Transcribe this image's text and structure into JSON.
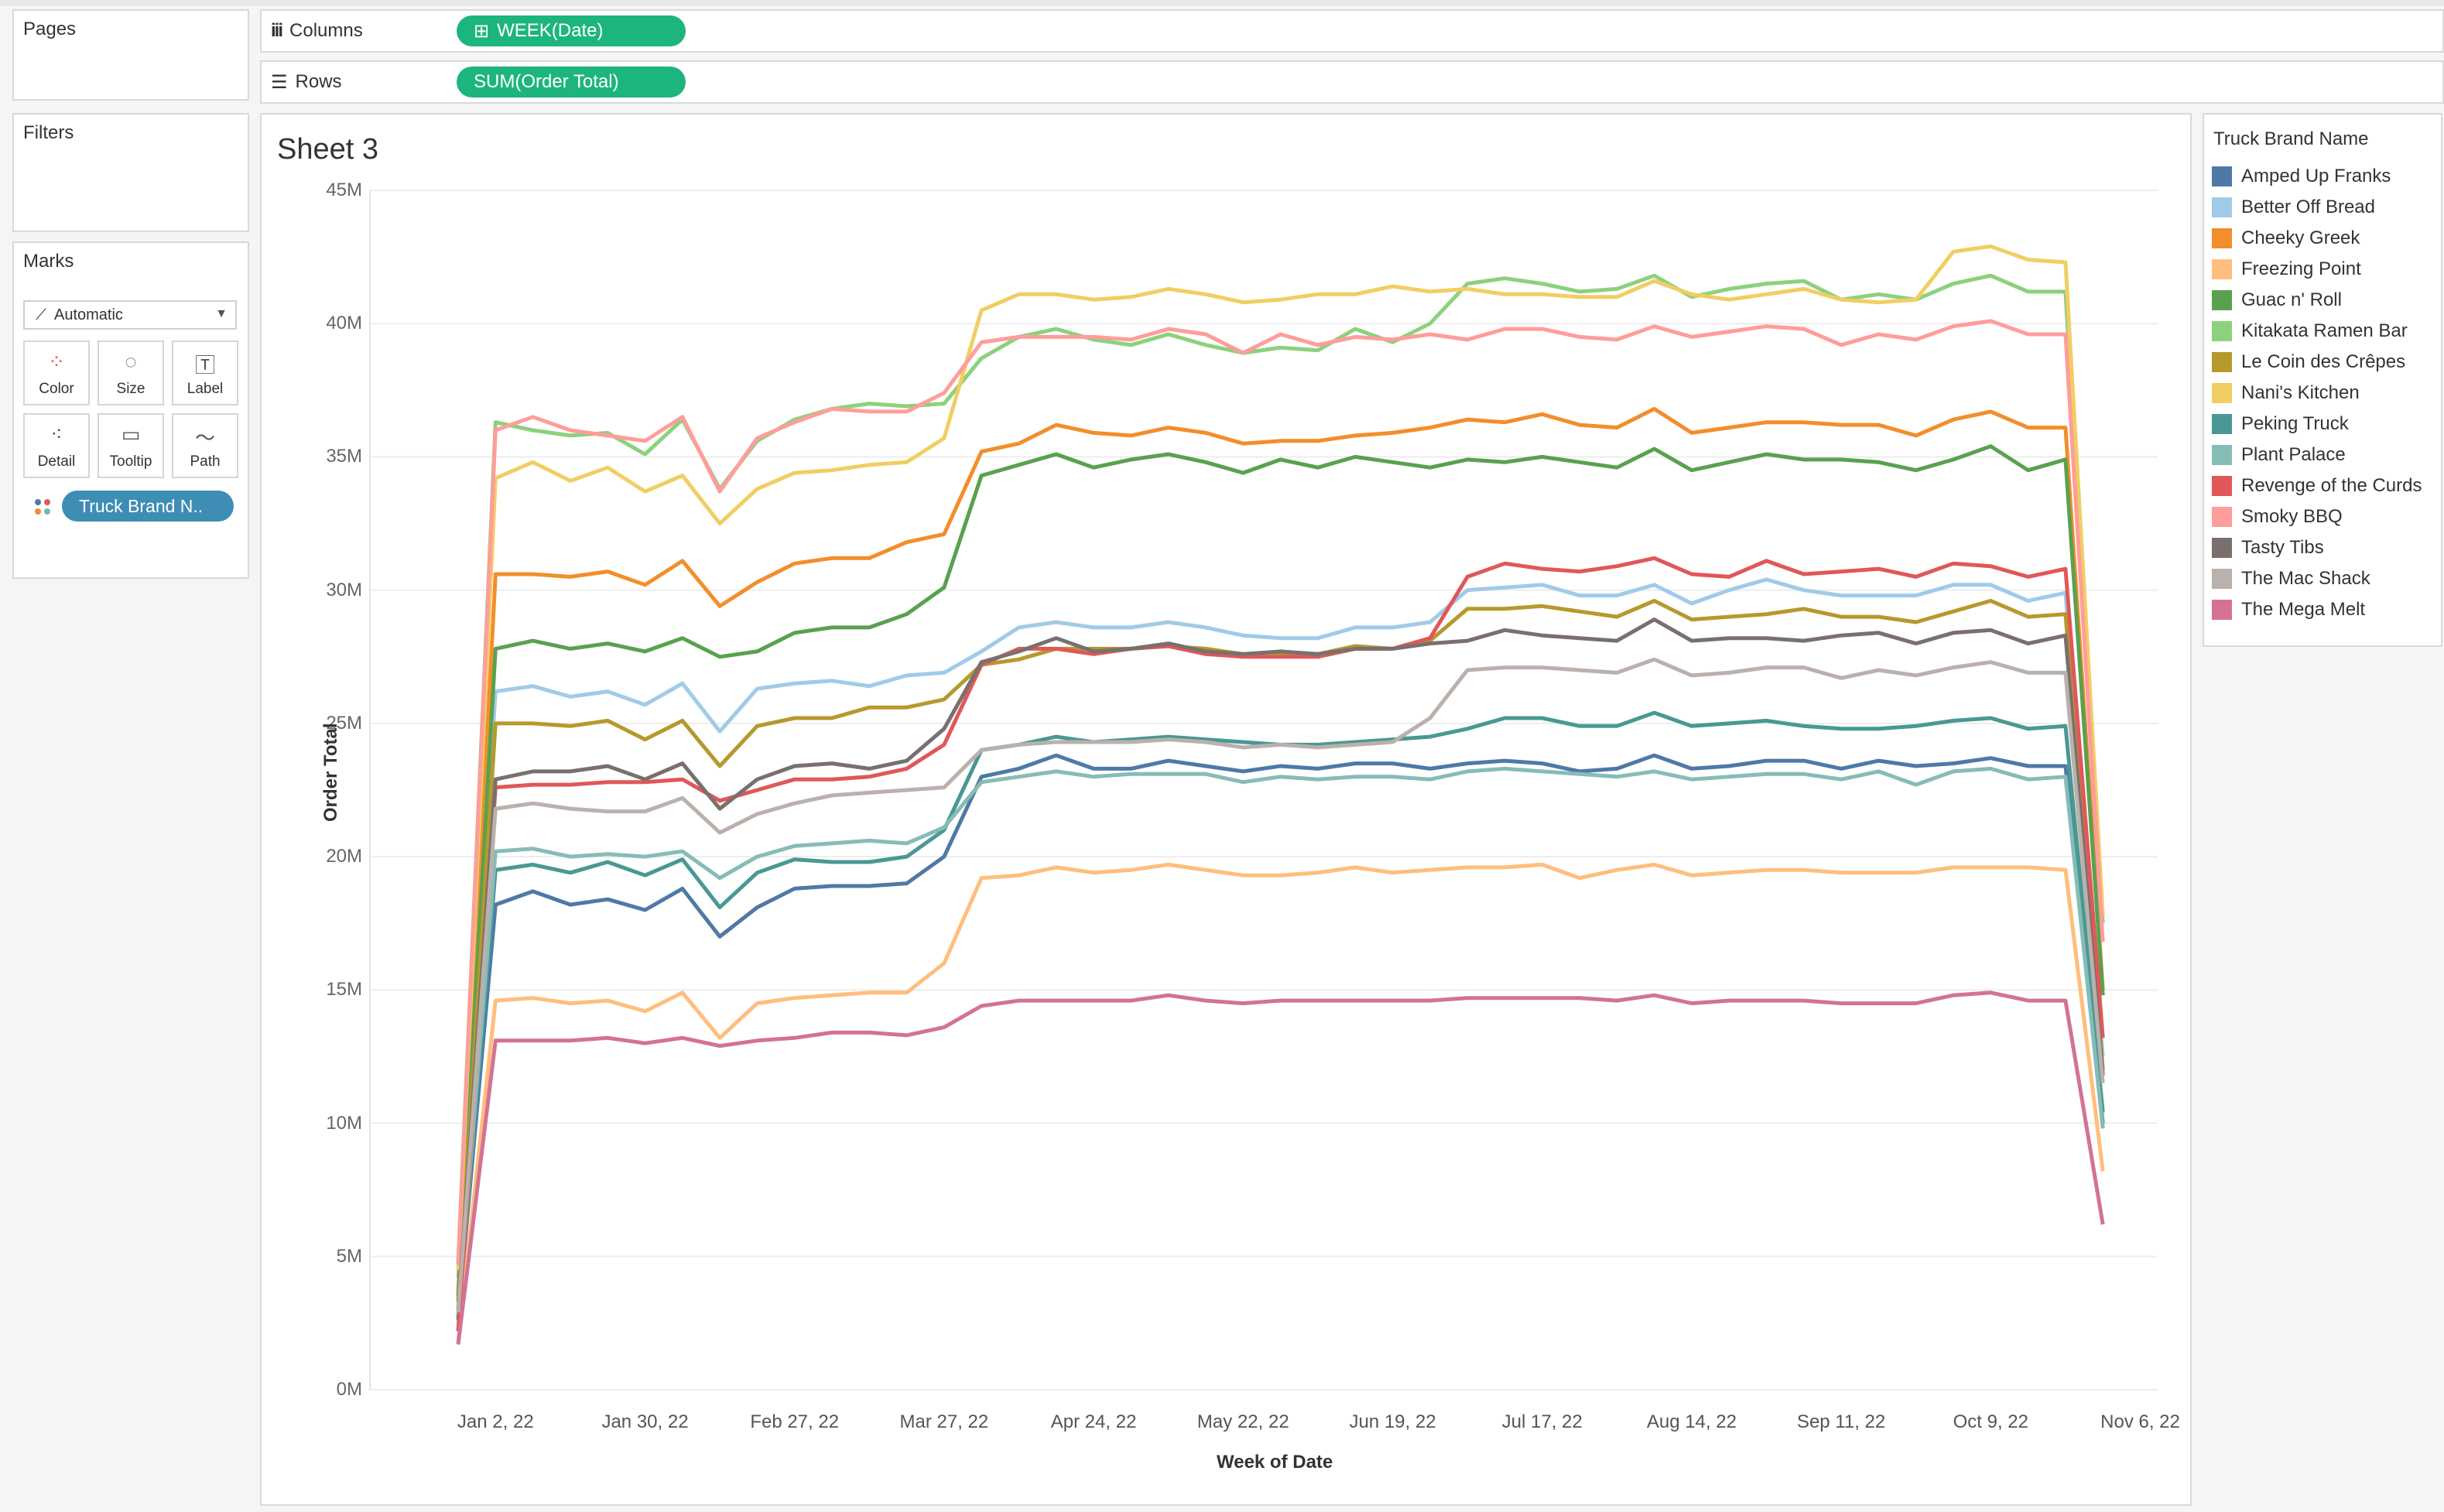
{
  "pages": {
    "label": "Pages"
  },
  "columns": {
    "label": "Columns",
    "pill": "WEEK(Date)"
  },
  "rows": {
    "label": "Rows",
    "pill": "SUM(Order Total)"
  },
  "filters": {
    "label": "Filters"
  },
  "marks": {
    "label": "Marks",
    "type": "Automatic",
    "buttons": [
      "Color",
      "Size",
      "Label",
      "Detail",
      "Tooltip",
      "Path"
    ],
    "pill": "Truck Brand N.."
  },
  "sheet": {
    "title": "Sheet 3"
  },
  "legend": {
    "title": "Truck Brand Name",
    "items": [
      {
        "label": "Amped Up Franks",
        "color": "#4e79a7"
      },
      {
        "label": "Better Off Bread",
        "color": "#a0cbe8"
      },
      {
        "label": "Cheeky Greek",
        "color": "#f28e2b"
      },
      {
        "label": "Freezing Point",
        "color": "#ffbe7d"
      },
      {
        "label": "Guac n' Roll",
        "color": "#59a14f"
      },
      {
        "label": "Kitakata Ramen Bar",
        "color": "#8cd17d"
      },
      {
        "label": "Le Coin des Crêpes",
        "color": "#b6992d"
      },
      {
        "label": "Nani's Kitchen",
        "color": "#f1ce63"
      },
      {
        "label": "Peking Truck",
        "color": "#499894"
      },
      {
        "label": "Plant Palace",
        "color": "#86bcb6"
      },
      {
        "label": "Revenge of the Curds",
        "color": "#e15759"
      },
      {
        "label": "Smoky BBQ",
        "color": "#ff9d9a"
      },
      {
        "label": "Tasty Tibs",
        "color": "#79706e"
      },
      {
        "label": "The Mac Shack",
        "color": "#bab0ac"
      },
      {
        "label": "The Mega Melt",
        "color": "#d37295"
      }
    ]
  },
  "chart_data": {
    "type": "line",
    "xlabel": "Week of Date",
    "ylabel": "Order Total",
    "ylim": [
      0,
      45000000
    ],
    "yticks": [
      "0M",
      "5M",
      "10M",
      "15M",
      "20M",
      "25M",
      "30M",
      "35M",
      "40M",
      "45M"
    ],
    "xticks": [
      "Jan 2, 22",
      "Jan 30, 22",
      "Feb 27, 22",
      "Mar 27, 22",
      "Apr 24, 22",
      "May 22, 22",
      "Jun 19, 22",
      "Jul 17, 22",
      "Aug 14, 22",
      "Sep 11, 22",
      "Oct 9, 22",
      "Nov 6, 22"
    ],
    "x": [
      "Dec 26, 21",
      "Jan 2, 22",
      "Jan 9, 22",
      "Jan 16, 22",
      "Jan 23, 22",
      "Jan 30, 22",
      "Feb 6, 22",
      "Feb 13, 22",
      "Feb 20, 22",
      "Feb 27, 22",
      "Mar 6, 22",
      "Mar 13, 22",
      "Mar 20, 22",
      "Mar 27, 22",
      "Apr 3, 22",
      "Apr 10, 22",
      "Apr 17, 22",
      "Apr 24, 22",
      "May 1, 22",
      "May 8, 22",
      "May 15, 22",
      "May 22, 22",
      "May 29, 22",
      "Jun 5, 22",
      "Jun 12, 22",
      "Jun 19, 22",
      "Jun 26, 22",
      "Jul 3, 22",
      "Jul 10, 22",
      "Jul 17, 22",
      "Jul 24, 22",
      "Jul 31, 22",
      "Aug 7, 22",
      "Aug 14, 22",
      "Aug 21, 22",
      "Aug 28, 22",
      "Sep 4, 22",
      "Sep 11, 22",
      "Sep 18, 22",
      "Sep 25, 22",
      "Oct 2, 22",
      "Oct 9, 22",
      "Oct 16, 22",
      "Oct 23, 22",
      "Oct 30, 22"
    ],
    "series": [
      {
        "name": "Amped Up Franks",
        "values": [
          2.7,
          18.2,
          18.7,
          18.2,
          18.4,
          18.0,
          18.8,
          17.0,
          18.1,
          18.8,
          18.9,
          18.9,
          19.0,
          20.0,
          23.0,
          23.3,
          23.8,
          23.3,
          23.3,
          23.6,
          23.4,
          23.2,
          23.4,
          23.3,
          23.5,
          23.5,
          23.3,
          23.5,
          23.6,
          23.5,
          23.2,
          23.3,
          23.8,
          23.3,
          23.4,
          23.6,
          23.6,
          23.3,
          23.6,
          23.4,
          23.5,
          23.7,
          23.4,
          23.4,
          10.0
        ]
      },
      {
        "name": "Better Off Bread",
        "values": [
          4.2,
          26.2,
          26.4,
          26.0,
          26.2,
          25.7,
          26.5,
          24.7,
          26.3,
          26.5,
          26.6,
          26.4,
          26.8,
          26.9,
          27.7,
          28.6,
          28.8,
          28.6,
          28.6,
          28.8,
          28.6,
          28.3,
          28.2,
          28.2,
          28.6,
          28.6,
          28.8,
          30.0,
          30.1,
          30.2,
          29.8,
          29.8,
          30.2,
          29.5,
          30.0,
          30.4,
          30.0,
          29.8,
          29.8,
          29.8,
          30.2,
          30.2,
          29.6,
          29.9,
          12.5
        ]
      },
      {
        "name": "Cheeky Greek",
        "values": [
          3.6,
          30.6,
          30.6,
          30.5,
          30.7,
          30.2,
          31.1,
          29.4,
          30.3,
          31.0,
          31.2,
          31.2,
          31.8,
          32.1,
          35.2,
          35.5,
          36.2,
          35.9,
          35.8,
          36.1,
          35.9,
          35.5,
          35.6,
          35.6,
          35.8,
          35.9,
          36.1,
          36.4,
          36.3,
          36.6,
          36.2,
          36.1,
          36.8,
          35.9,
          36.1,
          36.3,
          36.3,
          36.2,
          36.2,
          35.8,
          36.4,
          36.7,
          36.1,
          36.1,
          15.0
        ]
      },
      {
        "name": "Freezing Point",
        "values": [
          1.8,
          14.6,
          14.7,
          14.5,
          14.6,
          14.2,
          14.9,
          13.2,
          14.5,
          14.7,
          14.8,
          14.9,
          14.9,
          16.0,
          19.2,
          19.3,
          19.6,
          19.4,
          19.5,
          19.7,
          19.5,
          19.3,
          19.3,
          19.4,
          19.6,
          19.4,
          19.5,
          19.6,
          19.6,
          19.7,
          19.2,
          19.5,
          19.7,
          19.3,
          19.4,
          19.5,
          19.5,
          19.4,
          19.4,
          19.4,
          19.6,
          19.6,
          19.6,
          19.5,
          8.2
        ]
      },
      {
        "name": "Guac n' Roll",
        "values": [
          3.5,
          27.8,
          28.1,
          27.8,
          28.0,
          27.7,
          28.2,
          27.5,
          27.7,
          28.4,
          28.6,
          28.6,
          29.1,
          30.1,
          34.3,
          34.7,
          35.1,
          34.6,
          34.9,
          35.1,
          34.8,
          34.4,
          34.9,
          34.6,
          35.0,
          34.8,
          34.6,
          34.9,
          34.8,
          35.0,
          34.8,
          34.6,
          35.3,
          34.5,
          34.8,
          35.1,
          34.9,
          34.9,
          34.8,
          34.5,
          34.9,
          35.4,
          34.5,
          34.9,
          14.8
        ]
      },
      {
        "name": "Kitakata Ramen Bar",
        "values": [
          4.8,
          36.3,
          36.0,
          35.8,
          35.9,
          35.1,
          36.4,
          33.8,
          35.6,
          36.4,
          36.8,
          37.0,
          36.9,
          37.0,
          38.7,
          39.5,
          39.8,
          39.4,
          39.2,
          39.6,
          39.2,
          38.9,
          39.1,
          39.0,
          39.8,
          39.3,
          40.0,
          41.5,
          41.7,
          41.5,
          41.2,
          41.3,
          41.8,
          41.0,
          41.3,
          41.5,
          41.6,
          40.9,
          41.1,
          40.9,
          41.5,
          41.8,
          41.2,
          41.2,
          17.5
        ]
      },
      {
        "name": "Le Coin des Crêpes",
        "values": [
          3.3,
          25.0,
          25.0,
          24.9,
          25.1,
          24.4,
          25.1,
          23.4,
          24.9,
          25.2,
          25.2,
          25.6,
          25.6,
          25.9,
          27.2,
          27.4,
          27.8,
          27.8,
          27.8,
          27.9,
          27.8,
          27.6,
          27.6,
          27.6,
          27.9,
          27.8,
          28.1,
          29.3,
          29.3,
          29.4,
          29.2,
          29.0,
          29.6,
          28.9,
          29.0,
          29.1,
          29.3,
          29.0,
          29.0,
          28.8,
          29.2,
          29.6,
          29.0,
          29.1,
          12.0
        ]
      },
      {
        "name": "Nani's Kitchen",
        "values": [
          4.5,
          34.2,
          34.8,
          34.1,
          34.6,
          33.7,
          34.3,
          32.5,
          33.8,
          34.4,
          34.5,
          34.7,
          34.8,
          35.7,
          40.5,
          41.1,
          41.1,
          40.9,
          41.0,
          41.3,
          41.1,
          40.8,
          40.9,
          41.1,
          41.1,
          41.4,
          41.2,
          41.3,
          41.1,
          41.1,
          41.0,
          41.0,
          41.6,
          41.1,
          40.9,
          41.1,
          41.3,
          40.9,
          40.8,
          40.9,
          42.7,
          42.9,
          42.4,
          42.3,
          17.8
        ]
      },
      {
        "name": "Peking Truck",
        "values": [
          2.6,
          19.5,
          19.7,
          19.4,
          19.8,
          19.3,
          19.9,
          18.1,
          19.4,
          19.9,
          19.8,
          19.8,
          20.0,
          21.0,
          24.0,
          24.2,
          24.5,
          24.3,
          24.4,
          24.5,
          24.4,
          24.3,
          24.2,
          24.2,
          24.3,
          24.4,
          24.5,
          24.8,
          25.2,
          25.2,
          24.9,
          24.9,
          25.4,
          24.9,
          25.0,
          25.1,
          24.9,
          24.8,
          24.8,
          24.9,
          25.1,
          25.2,
          24.8,
          24.9,
          10.4
        ]
      },
      {
        "name": "Plant Palace",
        "values": [
          2.8,
          20.2,
          20.3,
          20.0,
          20.1,
          20.0,
          20.2,
          19.2,
          20.0,
          20.4,
          20.5,
          20.6,
          20.5,
          21.1,
          22.8,
          23.0,
          23.2,
          23.0,
          23.1,
          23.1,
          23.1,
          22.8,
          23.0,
          22.9,
          23.0,
          23.0,
          22.9,
          23.2,
          23.3,
          23.2,
          23.1,
          23.0,
          23.2,
          22.9,
          23.0,
          23.1,
          23.1,
          22.9,
          23.2,
          22.7,
          23.2,
          23.3,
          22.9,
          23.0,
          9.8
        ]
      },
      {
        "name": "Revenge of the Curds",
        "values": [
          2.2,
          22.6,
          22.7,
          22.7,
          22.8,
          22.8,
          22.9,
          22.1,
          22.5,
          22.9,
          22.9,
          23.0,
          23.3,
          24.2,
          27.2,
          27.8,
          27.8,
          27.6,
          27.8,
          27.9,
          27.6,
          27.5,
          27.5,
          27.5,
          27.8,
          27.8,
          28.2,
          30.5,
          31.0,
          30.8,
          30.7,
          30.9,
          31.2,
          30.6,
          30.5,
          31.1,
          30.6,
          30.7,
          30.8,
          30.5,
          31.0,
          30.9,
          30.5,
          30.8,
          13.2
        ]
      },
      {
        "name": "Smoky BBQ",
        "values": [
          4.7,
          36.0,
          36.5,
          36.0,
          35.8,
          35.6,
          36.5,
          33.7,
          35.7,
          36.3,
          36.8,
          36.7,
          36.7,
          37.4,
          39.3,
          39.5,
          39.5,
          39.5,
          39.4,
          39.8,
          39.6,
          38.9,
          39.6,
          39.2,
          39.5,
          39.4,
          39.6,
          39.4,
          39.8,
          39.8,
          39.5,
          39.4,
          39.9,
          39.5,
          39.7,
          39.9,
          39.8,
          39.2,
          39.6,
          39.4,
          39.9,
          40.1,
          39.6,
          39.6,
          16.8
        ]
      },
      {
        "name": "Tasty Tibs",
        "values": [
          3.0,
          22.9,
          23.2,
          23.2,
          23.4,
          22.9,
          23.5,
          21.8,
          22.9,
          23.4,
          23.5,
          23.3,
          23.6,
          24.8,
          27.3,
          27.7,
          28.2,
          27.7,
          27.8,
          28.0,
          27.7,
          27.6,
          27.7,
          27.6,
          27.8,
          27.8,
          28.0,
          28.1,
          28.5,
          28.3,
          28.2,
          28.1,
          28.9,
          28.1,
          28.2,
          28.2,
          28.1,
          28.3,
          28.4,
          28.0,
          28.4,
          28.5,
          28.0,
          28.3,
          11.8
        ]
      },
      {
        "name": "The Mac Shack",
        "values": [
          2.9,
          21.8,
          22.0,
          21.8,
          21.7,
          21.7,
          22.2,
          20.9,
          21.6,
          22.0,
          22.3,
          22.4,
          22.5,
          22.6,
          24.0,
          24.2,
          24.3,
          24.3,
          24.3,
          24.4,
          24.3,
          24.1,
          24.2,
          24.1,
          24.2,
          24.3,
          25.2,
          27.0,
          27.1,
          27.1,
          27.0,
          26.9,
          27.4,
          26.8,
          26.9,
          27.1,
          27.1,
          26.7,
          27.0,
          26.8,
          27.1,
          27.3,
          26.9,
          26.9,
          11.5
        ]
      },
      {
        "name": "The Mega Melt",
        "values": [
          1.7,
          13.1,
          13.1,
          13.1,
          13.2,
          13.0,
          13.2,
          12.9,
          13.1,
          13.2,
          13.4,
          13.4,
          13.3,
          13.6,
          14.4,
          14.6,
          14.6,
          14.6,
          14.6,
          14.8,
          14.6,
          14.5,
          14.6,
          14.6,
          14.6,
          14.6,
          14.6,
          14.7,
          14.7,
          14.7,
          14.7,
          14.6,
          14.8,
          14.5,
          14.6,
          14.6,
          14.6,
          14.5,
          14.5,
          14.5,
          14.8,
          14.9,
          14.6,
          14.6,
          6.2
        ]
      }
    ]
  }
}
